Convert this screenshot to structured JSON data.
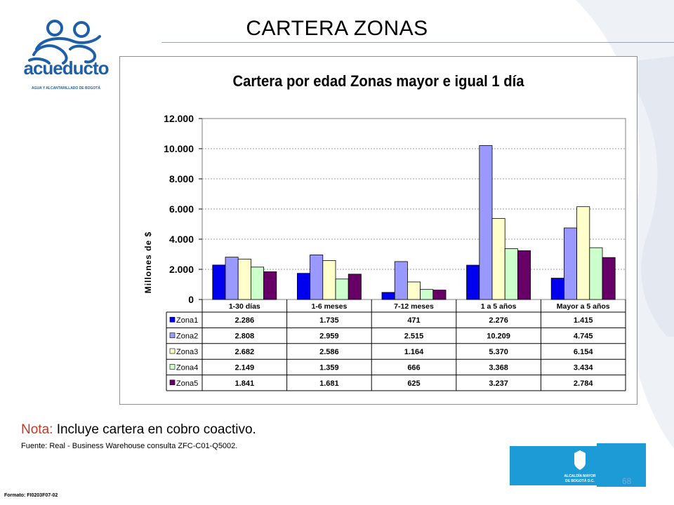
{
  "slide": {
    "title": "CARTERA ZONAS",
    "logo_text": "acueducto",
    "logo_subtext": "AGUA Y ALCANTARILLADO DE BOGOTÁ",
    "note_keyword": "Nota:",
    "note_text": " Incluye cartera en cobro coactivo.",
    "source": "Fuente: Real - Business Warehouse  consulta ZFC-C01-Q5002.",
    "formato": "Formato: FI0203F07-02",
    "page_number": "68",
    "alcaldia_label_1": "ALCALDÍA MAYOR",
    "alcaldia_label_2": "DE BOGOTÁ D.C."
  },
  "colors": {
    "Zona1": "#0000ee",
    "Zona2": "#9999ff",
    "Zona3": "#ffffcc",
    "Zona4": "#ccffcc",
    "Zona5": "#660066",
    "plot_bg": "#ffffff",
    "logo_blue": "#1f5fa8"
  },
  "chart_data": {
    "type": "bar",
    "title": "Cartera por edad Zonas  mayor e igual 1 día",
    "ylabel": "Millones de $",
    "xlabel": "",
    "ylim": [
      0,
      12000
    ],
    "yticks": [
      "0",
      "2.000",
      "4.000",
      "6.000",
      "8.000",
      "10.000",
      "12.000"
    ],
    "grid": true,
    "legend": "data-table",
    "categories": [
      "1-30 días",
      "1-6 meses",
      "7-12 meses",
      "1 a 5 años",
      "Mayor a 5 años"
    ],
    "series": [
      {
        "name": "Zona1",
        "values": [
          2286,
          1735,
          471,
          2276,
          1415
        ],
        "labels": [
          "2.286",
          "1.735",
          "471",
          "2.276",
          "1.415"
        ]
      },
      {
        "name": "Zona2",
        "values": [
          2808,
          2959,
          2515,
          10209,
          4745
        ],
        "labels": [
          "2.808",
          "2.959",
          "2.515",
          "10.209",
          "4.745"
        ]
      },
      {
        "name": "Zona3",
        "values": [
          2682,
          2586,
          1164,
          5370,
          6154
        ],
        "labels": [
          "2.682",
          "2.586",
          "1.164",
          "5.370",
          "6.154"
        ]
      },
      {
        "name": "Zona4",
        "values": [
          2149,
          1359,
          666,
          3368,
          3434
        ],
        "labels": [
          "2.149",
          "1.359",
          "666",
          "3.368",
          "3.434"
        ]
      },
      {
        "name": "Zona5",
        "values": [
          1841,
          1681,
          625,
          3237,
          2784
        ],
        "labels": [
          "1.841",
          "1.681",
          "625",
          "3.237",
          "2.784"
        ]
      }
    ]
  }
}
